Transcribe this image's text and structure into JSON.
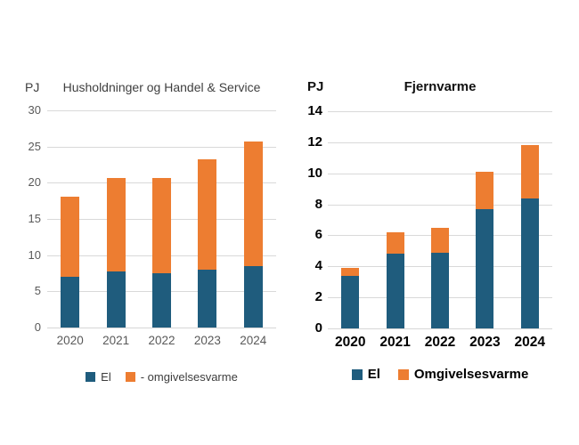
{
  "chart_data": [
    {
      "type": "bar",
      "stacked": true,
      "title": "Husholdninger og Handel & Service",
      "unit": "PJ",
      "categories": [
        "2020",
        "2021",
        "2022",
        "2023",
        "2024"
      ],
      "series": [
        {
          "name": "El",
          "color": "#1F5C7D",
          "values": [
            7.0,
            7.8,
            7.5,
            8.0,
            8.5
          ]
        },
        {
          "name": "- omgivelsesvarme",
          "color": "#ED7D31",
          "values": [
            11.1,
            12.9,
            13.2,
            15.3,
            17.2
          ]
        }
      ],
      "totals": [
        18.1,
        20.7,
        20.7,
        23.3,
        25.7
      ],
      "ylim": [
        0,
        30
      ],
      "y_step": 5,
      "grid": true,
      "legend_position": "bottom"
    },
    {
      "type": "bar",
      "stacked": true,
      "title": "Fjernvarme",
      "unit": "PJ",
      "categories": [
        "2020",
        "2021",
        "2022",
        "2023",
        "2024"
      ],
      "series": [
        {
          "name": "El",
          "color": "#1F5C7D",
          "values": [
            3.4,
            4.8,
            4.9,
            7.7,
            8.4
          ]
        },
        {
          "name": "Omgivelsesvarme",
          "color": "#ED7D31",
          "values": [
            0.5,
            1.4,
            1.6,
            2.4,
            3.4
          ]
        }
      ],
      "totals": [
        3.9,
        6.2,
        6.5,
        10.1,
        11.8
      ],
      "ylim": [
        0,
        14
      ],
      "y_step": 2,
      "grid": true,
      "legend_position": "bottom"
    }
  ],
  "colors": {
    "el": "#1F5C7D",
    "omgivelsesvarme": "#ED7D31",
    "gridline": "#d9d9d9",
    "left_text": "#595959",
    "right_text": "#000000"
  }
}
